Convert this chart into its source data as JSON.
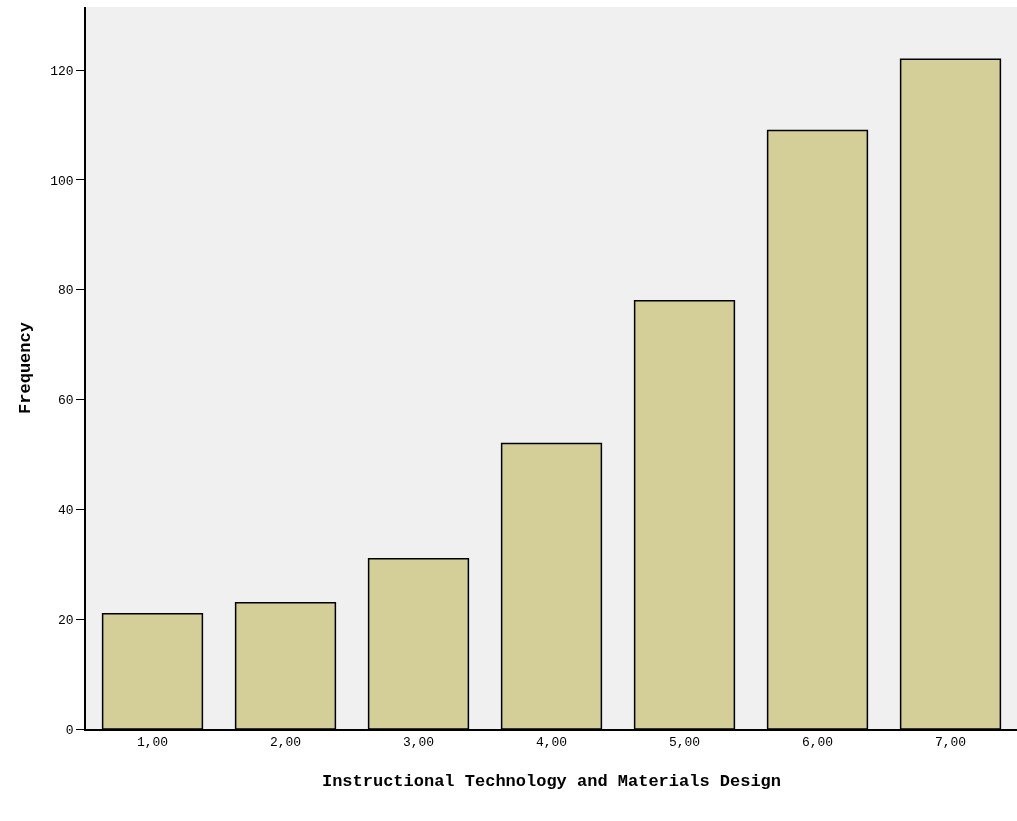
{
  "chart_data": {
    "type": "bar",
    "xlabel": "Instructional Technology and Materials Design",
    "ylabel": "Frequency",
    "categories": [
      "1,00",
      "2,00",
      "3,00",
      "4,00",
      "5,00",
      "6,00",
      "7,00"
    ],
    "values": [
      21,
      23,
      31,
      52,
      78,
      109,
      122
    ],
    "color": "#d4cf98",
    "ylim": [
      0,
      131.5
    ],
    "yticks": [
      0,
      20,
      40,
      60,
      80,
      100,
      120
    ],
    "grid": false,
    "legend": false
  }
}
